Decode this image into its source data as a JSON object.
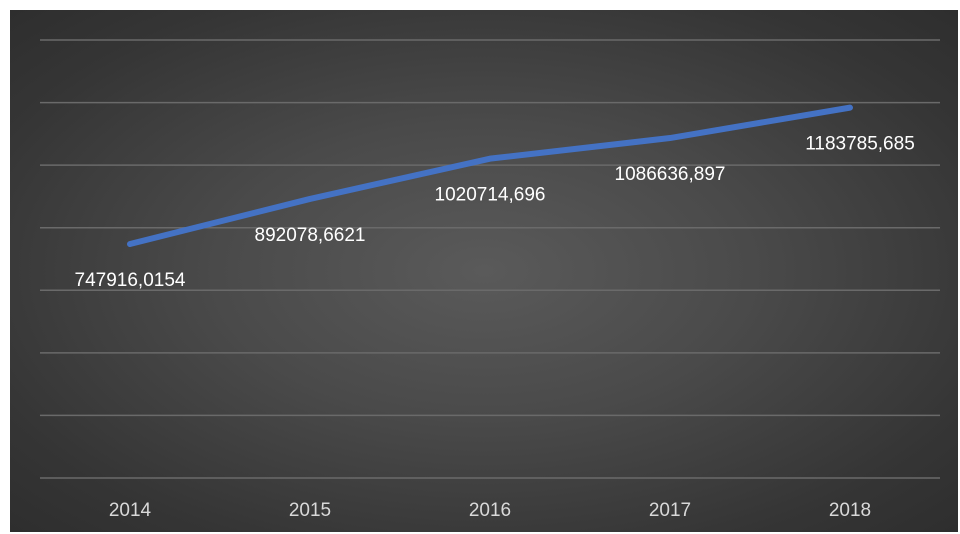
{
  "chart_data": {
    "type": "line",
    "categories": [
      "2014",
      "2015",
      "2016",
      "2017",
      "2018"
    ],
    "series": [
      {
        "values": [
          747916.0154,
          892078.6621,
          1020714.696,
          1086636.897,
          1183785.685
        ],
        "data_labels": [
          "747916,0154",
          "892078,6621",
          "1020714,696",
          "1086636,897",
          "1183785,685"
        ]
      }
    ],
    "ylim": [
      0,
      1400000
    ],
    "y_gridline_step": 200000,
    "grid": true,
    "y_axis_labels_shown": false,
    "legend": "none",
    "title": "",
    "xlabel": "",
    "ylabel": "",
    "colors": {
      "line": "#4472C4",
      "background": "#404040",
      "grid": "#6a6a6a",
      "text": "#d9d9d9"
    }
  }
}
